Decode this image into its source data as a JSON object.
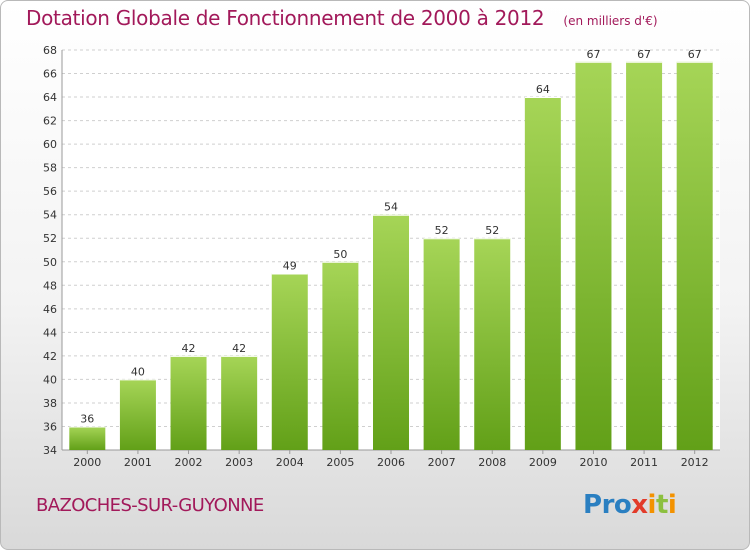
{
  "title": "Dotation Globale de Fonctionnement de 2000 à 2012",
  "subtitle": "(en milliers d'€)",
  "commune": "BAZOCHES-SUR-GUYONNE",
  "brand": {
    "letters": [
      "P",
      "r",
      "o",
      "x",
      "i",
      "t",
      "i"
    ],
    "colors": [
      "#2a7fc1",
      "#2a7fc1",
      "#2a7fc1",
      "#e23b2a",
      "#f39200",
      "#8cc03f",
      "#f39200"
    ]
  },
  "colors": {
    "bar_top": "#a6d557",
    "bar_bottom": "#62a018",
    "text": "#333333",
    "title": "#a2195a"
  },
  "chart_data": {
    "type": "bar",
    "categories": [
      "2000",
      "2001",
      "2002",
      "2003",
      "2004",
      "2005",
      "2006",
      "2007",
      "2008",
      "2009",
      "2010",
      "2011",
      "2012"
    ],
    "values": [
      36,
      40,
      42,
      42,
      49,
      50,
      54,
      52,
      52,
      64,
      67,
      67,
      67
    ],
    "ylim": [
      34,
      68
    ],
    "yticks": [
      34,
      36,
      38,
      40,
      42,
      44,
      46,
      48,
      50,
      52,
      54,
      56,
      58,
      60,
      62,
      64,
      66,
      68
    ],
    "grid": true,
    "data_labels": true
  }
}
